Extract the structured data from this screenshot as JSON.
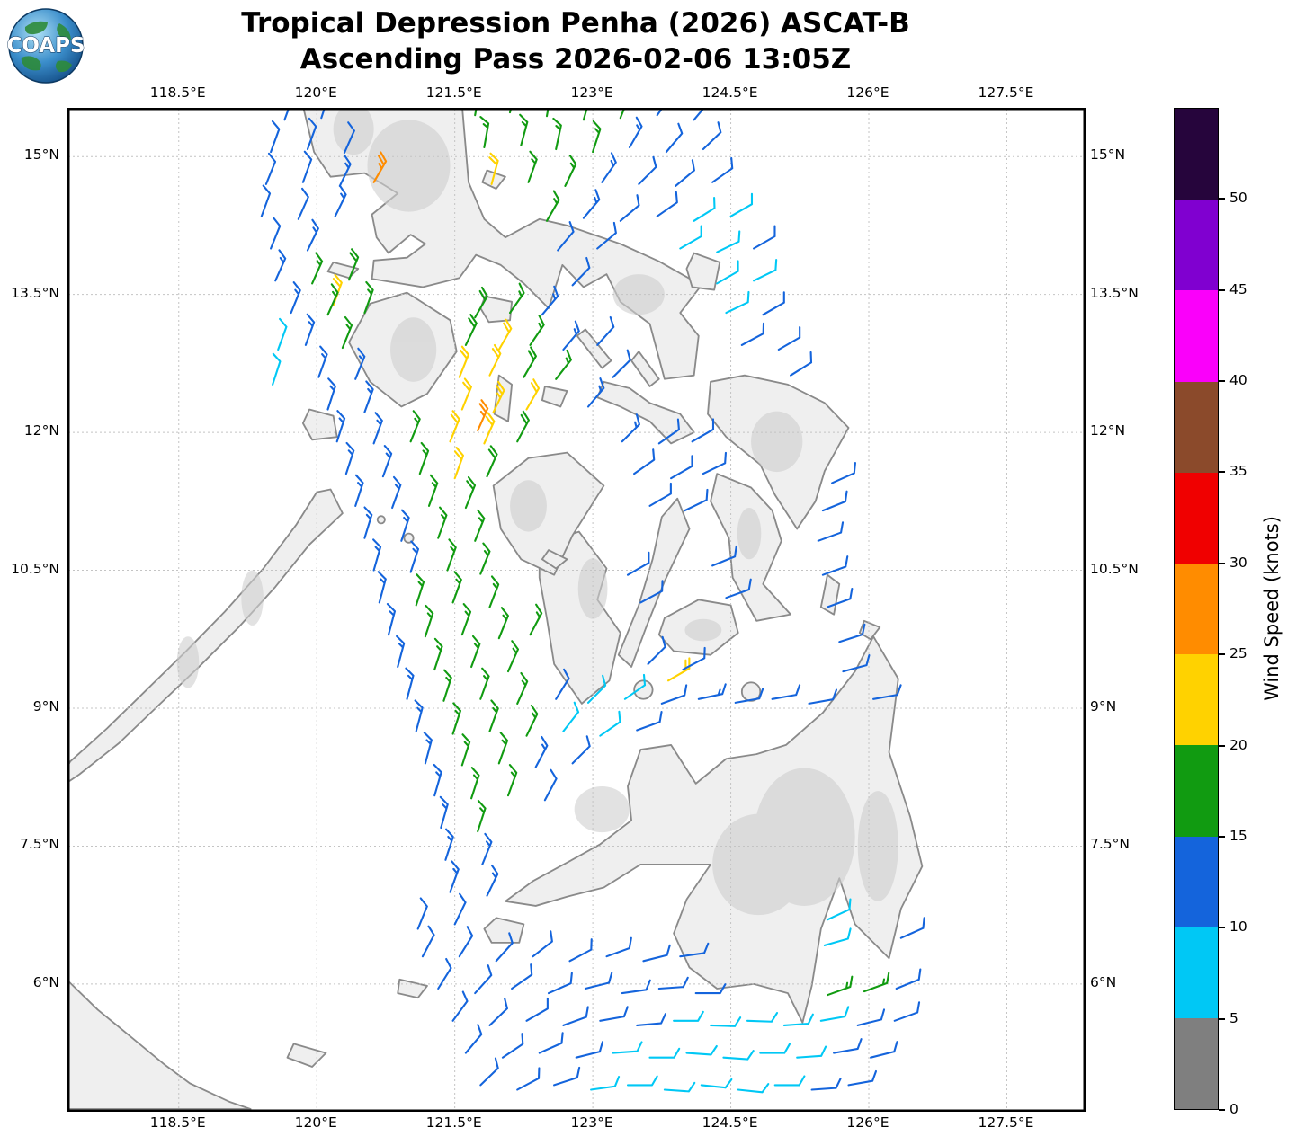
{
  "header": {
    "title_line1": "Tropical Depression Penha (2026) ASCAT-B",
    "title_line2": "Ascending Pass 2026-02-06 13:05Z",
    "logo_text": "COAPS"
  },
  "axes": {
    "lon_ticks": [
      {
        "label": "118.5°E",
        "lon": 118.5
      },
      {
        "label": "120°E",
        "lon": 120.0
      },
      {
        "label": "121.5°E",
        "lon": 121.5
      },
      {
        "label": "123°E",
        "lon": 123.0
      },
      {
        "label": "124.5°E",
        "lon": 124.5
      },
      {
        "label": "126°E",
        "lon": 126.0
      },
      {
        "label": "127.5°E",
        "lon": 127.5
      }
    ],
    "lat_ticks": [
      {
        "label": "15°N",
        "lat": 15.0
      },
      {
        "label": "13.5°N",
        "lat": 13.5
      },
      {
        "label": "12°N",
        "lat": 12.0
      },
      {
        "label": "10.5°N",
        "lat": 10.5
      },
      {
        "label": "9°N",
        "lat": 9.0
      },
      {
        "label": "7.5°N",
        "lat": 7.5
      },
      {
        "label": "6°N",
        "lat": 6.0
      }
    ]
  },
  "colorbar": {
    "title": "Wind Speed (knots)",
    "max": 55,
    "tick_values": [
      0,
      5,
      10,
      15,
      20,
      25,
      30,
      35,
      40,
      45,
      50
    ],
    "segments": [
      {
        "from": 0,
        "to": 5,
        "color": "#7f7f7f"
      },
      {
        "from": 5,
        "to": 10,
        "color": "#00c8f5"
      },
      {
        "from": 10,
        "to": 15,
        "color": "#1464dc"
      },
      {
        "from": 15,
        "to": 20,
        "color": "#119b11"
      },
      {
        "from": 20,
        "to": 25,
        "color": "#ffd200"
      },
      {
        "from": 25,
        "to": 30,
        "color": "#ff8c00"
      },
      {
        "from": 30,
        "to": 35,
        "color": "#f00000"
      },
      {
        "from": 35,
        "to": 40,
        "color": "#8b4a2b"
      },
      {
        "from": 40,
        "to": 45,
        "color": "#fa00fa"
      },
      {
        "from": 45,
        "to": 50,
        "color": "#8000d0"
      },
      {
        "from": 50,
        "to": 55,
        "color": "#26053c"
      }
    ]
  },
  "map": {
    "lon_min": 117.3,
    "lon_max": 128.35,
    "lat_min": 4.62,
    "lat_max": 15.52,
    "sea_color": "#ffffff",
    "land_color": "#efefef",
    "terrain_color": "#cfcfcf",
    "coast_color": "#8a8a8a",
    "grid_color": "#c4c4c4"
  },
  "chart_data": {
    "type": "wind_barb_map",
    "units": "knots",
    "barb_format": "[lon_deg_E, lat_deg_N, wind_from_direction_deg, speed_knots]",
    "barbs": [
      [
        119.65,
        15.4,
        20,
        12
      ],
      [
        120.05,
        15.42,
        18,
        12
      ],
      [
        121.72,
        15.45,
        10,
        16
      ],
      [
        122.1,
        15.48,
        14,
        17
      ],
      [
        122.5,
        15.44,
        10,
        16
      ],
      [
        122.9,
        15.4,
        16,
        16
      ],
      [
        123.3,
        15.42,
        22,
        15
      ],
      [
        123.7,
        15.45,
        35,
        13
      ],
      [
        124.1,
        15.4,
        40,
        12
      ],
      [
        119.5,
        15.05,
        20,
        10
      ],
      [
        119.9,
        15.08,
        20,
        12
      ],
      [
        120.3,
        15.04,
        24,
        12
      ],
      [
        121.82,
        15.1,
        10,
        16
      ],
      [
        122.22,
        15.12,
        15,
        17
      ],
      [
        122.6,
        15.08,
        12,
        16
      ],
      [
        123.0,
        15.05,
        18,
        15
      ],
      [
        123.4,
        15.1,
        30,
        13
      ],
      [
        123.8,
        15.05,
        40,
        12
      ],
      [
        124.2,
        15.08,
        46,
        12
      ],
      [
        119.45,
        14.7,
        22,
        10
      ],
      [
        119.85,
        14.72,
        20,
        12
      ],
      [
        120.25,
        14.68,
        26,
        13
      ],
      [
        120.62,
        14.72,
        30,
        26
      ],
      [
        121.9,
        14.7,
        15,
        21
      ],
      [
        122.3,
        14.72,
        20,
        17
      ],
      [
        122.7,
        14.68,
        26,
        16
      ],
      [
        123.1,
        14.72,
        35,
        14
      ],
      [
        123.5,
        14.7,
        45,
        12
      ],
      [
        123.9,
        14.68,
        50,
        12
      ],
      [
        124.3,
        14.72,
        55,
        10
      ],
      [
        119.4,
        14.35,
        20,
        12
      ],
      [
        119.8,
        14.32,
        24,
        12
      ],
      [
        120.2,
        14.35,
        26,
        13
      ],
      [
        122.5,
        14.3,
        30,
        15
      ],
      [
        122.9,
        14.33,
        40,
        13
      ],
      [
        123.3,
        14.3,
        50,
        12
      ],
      [
        123.7,
        14.35,
        55,
        10
      ],
      [
        124.1,
        14.3,
        58,
        8
      ],
      [
        124.5,
        14.35,
        60,
        8
      ],
      [
        119.5,
        14.0,
        22,
        12
      ],
      [
        119.9,
        13.98,
        26,
        13
      ],
      [
        122.62,
        13.98,
        40,
        12
      ],
      [
        123.05,
        14.0,
        50,
        11
      ],
      [
        123.95,
        14.0,
        60,
        8
      ],
      [
        124.35,
        13.96,
        64,
        8
      ],
      [
        124.75,
        14.0,
        60,
        10
      ],
      [
        119.55,
        13.65,
        24,
        13
      ],
      [
        119.95,
        13.62,
        24,
        16
      ],
      [
        120.35,
        13.66,
        22,
        18
      ],
      [
        120.18,
        13.38,
        20,
        21
      ],
      [
        122.78,
        13.6,
        44,
        12
      ],
      [
        124.35,
        13.62,
        60,
        8
      ],
      [
        124.75,
        13.65,
        64,
        9
      ],
      [
        119.72,
        13.3,
        22,
        13
      ],
      [
        120.12,
        13.28,
        24,
        17
      ],
      [
        120.52,
        13.3,
        20,
        16
      ],
      [
        121.72,
        13.25,
        30,
        18
      ],
      [
        122.1,
        13.3,
        35,
        16
      ],
      [
        122.45,
        13.28,
        40,
        13
      ],
      [
        124.45,
        13.3,
        64,
        9
      ],
      [
        124.85,
        13.28,
        60,
        10
      ],
      [
        119.58,
        12.9,
        20,
        8
      ],
      [
        119.88,
        12.95,
        20,
        14
      ],
      [
        120.28,
        12.92,
        22,
        15
      ],
      [
        121.62,
        12.95,
        26,
        19
      ],
      [
        121.98,
        12.9,
        30,
        20
      ],
      [
        122.32,
        12.95,
        34,
        17
      ],
      [
        122.68,
        12.9,
        40,
        14
      ],
      [
        123.05,
        12.95,
        42,
        12
      ],
      [
        124.62,
        12.95,
        62,
        10
      ],
      [
        125.02,
        12.9,
        60,
        11
      ],
      [
        119.52,
        12.52,
        18,
        8
      ],
      [
        120.02,
        12.6,
        20,
        13
      ],
      [
        120.42,
        12.58,
        22,
        14
      ],
      [
        121.55,
        12.6,
        22,
        20
      ],
      [
        121.88,
        12.62,
        26,
        21
      ],
      [
        122.25,
        12.6,
        30,
        18
      ],
      [
        122.6,
        12.58,
        38,
        15
      ],
      [
        123.22,
        12.6,
        45,
        12
      ],
      [
        125.15,
        12.62,
        58,
        10
      ],
      [
        120.12,
        12.25,
        18,
        13
      ],
      [
        120.52,
        12.22,
        20,
        14
      ],
      [
        121.58,
        12.25,
        22,
        22
      ],
      [
        121.75,
        12.02,
        24,
        27
      ],
      [
        121.92,
        12.22,
        26,
        23
      ],
      [
        122.28,
        12.25,
        30,
        20
      ],
      [
        122.95,
        12.28,
        40,
        14
      ],
      [
        120.22,
        11.9,
        18,
        13
      ],
      [
        120.62,
        11.88,
        20,
        14
      ],
      [
        121.02,
        11.9,
        22,
        15
      ],
      [
        121.45,
        11.9,
        22,
        21
      ],
      [
        121.82,
        11.88,
        24,
        22
      ],
      [
        122.18,
        11.9,
        28,
        19
      ],
      [
        123.32,
        11.9,
        45,
        13
      ],
      [
        123.72,
        11.88,
        55,
        12
      ],
      [
        124.08,
        11.9,
        60,
        11
      ],
      [
        120.32,
        11.55,
        18,
        13
      ],
      [
        120.72,
        11.52,
        20,
        14
      ],
      [
        121.12,
        11.55,
        20,
        15
      ],
      [
        121.5,
        11.5,
        20,
        20
      ],
      [
        121.85,
        11.52,
        24,
        19
      ],
      [
        123.45,
        11.55,
        55,
        12
      ],
      [
        123.85,
        11.5,
        60,
        11
      ],
      [
        124.2,
        11.55,
        64,
        10
      ],
      [
        125.6,
        11.45,
        66,
        10
      ],
      [
        120.42,
        11.2,
        18,
        13
      ],
      [
        120.82,
        11.18,
        20,
        14
      ],
      [
        121.22,
        11.2,
        20,
        16
      ],
      [
        121.62,
        11.18,
        22,
        18
      ],
      [
        123.62,
        11.2,
        60,
        11
      ],
      [
        124.0,
        11.15,
        64,
        10
      ],
      [
        125.5,
        11.15,
        68,
        10
      ],
      [
        120.52,
        10.85,
        17,
        13
      ],
      [
        120.92,
        10.82,
        18,
        14
      ],
      [
        121.32,
        10.85,
        20,
        16
      ],
      [
        121.72,
        10.82,
        22,
        17
      ],
      [
        125.45,
        10.82,
        70,
        10
      ],
      [
        120.62,
        10.5,
        16,
        13
      ],
      [
        121.02,
        10.48,
        18,
        14
      ],
      [
        121.42,
        10.5,
        20,
        17
      ],
      [
        121.78,
        10.46,
        22,
        16
      ],
      [
        123.38,
        10.45,
        60,
        11
      ],
      [
        124.3,
        10.55,
        68,
        11
      ],
      [
        125.5,
        10.45,
        70,
        10
      ],
      [
        120.68,
        10.15,
        15,
        13
      ],
      [
        121.08,
        10.12,
        18,
        15
      ],
      [
        121.48,
        10.15,
        20,
        17
      ],
      [
        121.88,
        10.1,
        21,
        16
      ],
      [
        123.52,
        10.15,
        62,
        11
      ],
      [
        124.45,
        10.2,
        70,
        11
      ],
      [
        125.55,
        10.1,
        70,
        10
      ],
      [
        120.78,
        9.8,
        15,
        13
      ],
      [
        121.18,
        9.78,
        18,
        15
      ],
      [
        121.58,
        9.8,
        20,
        17
      ],
      [
        121.98,
        9.76,
        22,
        16
      ],
      [
        122.32,
        9.8,
        28,
        15
      ],
      [
        125.68,
        9.72,
        72,
        10
      ],
      [
        120.88,
        9.45,
        15,
        13
      ],
      [
        121.28,
        9.42,
        18,
        15
      ],
      [
        121.68,
        9.45,
        20,
        17
      ],
      [
        122.08,
        9.4,
        24,
        16
      ],
      [
        123.6,
        9.48,
        45,
        12
      ],
      [
        123.82,
        9.3,
        60,
        21
      ],
      [
        123.98,
        9.42,
        62,
        11
      ],
      [
        125.72,
        9.4,
        75,
        10
      ],
      [
        120.98,
        9.1,
        15,
        14
      ],
      [
        121.38,
        9.08,
        18,
        16
      ],
      [
        121.78,
        9.1,
        20,
        17
      ],
      [
        122.18,
        9.05,
        24,
        16
      ],
      [
        122.6,
        9.1,
        32,
        12
      ],
      [
        122.95,
        9.06,
        45,
        8
      ],
      [
        123.35,
        9.1,
        55,
        8
      ],
      [
        123.75,
        9.05,
        70,
        12
      ],
      [
        124.15,
        9.1,
        78,
        13
      ],
      [
        124.55,
        9.06,
        80,
        12
      ],
      [
        124.95,
        9.1,
        80,
        12
      ],
      [
        125.35,
        9.05,
        80,
        11
      ],
      [
        126.05,
        9.1,
        80,
        11
      ],
      [
        121.08,
        8.75,
        15,
        14
      ],
      [
        121.48,
        8.72,
        18,
        16
      ],
      [
        121.88,
        8.75,
        20,
        17
      ],
      [
        122.28,
        8.7,
        26,
        15
      ],
      [
        122.68,
        8.75,
        38,
        9
      ],
      [
        123.08,
        8.7,
        55,
        9
      ],
      [
        123.48,
        8.76,
        70,
        12
      ],
      [
        121.18,
        8.4,
        15,
        14
      ],
      [
        121.58,
        8.38,
        18,
        16
      ],
      [
        121.98,
        8.4,
        20,
        16
      ],
      [
        122.38,
        8.36,
        28,
        13
      ],
      [
        122.78,
        8.4,
        45,
        10
      ],
      [
        121.28,
        8.05,
        16,
        14
      ],
      [
        121.68,
        8.02,
        18,
        17
      ],
      [
        122.08,
        8.05,
        20,
        16
      ],
      [
        122.48,
        8.0,
        28,
        12
      ],
      [
        121.35,
        7.7,
        16,
        14
      ],
      [
        121.75,
        7.66,
        18,
        16
      ],
      [
        121.4,
        7.35,
        18,
        14
      ],
      [
        121.8,
        7.3,
        22,
        14
      ],
      [
        121.45,
        7.0,
        20,
        13
      ],
      [
        121.85,
        6.96,
        26,
        13
      ],
      [
        121.1,
        6.6,
        22,
        12
      ],
      [
        121.5,
        6.65,
        26,
        12
      ],
      [
        121.15,
        6.3,
        28,
        12
      ],
      [
        121.55,
        6.3,
        32,
        12
      ],
      [
        121.95,
        6.25,
        42,
        12
      ],
      [
        122.35,
        6.3,
        52,
        11
      ],
      [
        122.75,
        6.25,
        62,
        11
      ],
      [
        123.15,
        6.3,
        70,
        11
      ],
      [
        123.55,
        6.25,
        76,
        11
      ],
      [
        123.95,
        6.3,
        82,
        10
      ],
      [
        125.52,
        6.42,
        74,
        8
      ],
      [
        125.55,
        6.7,
        65,
        9
      ],
      [
        126.35,
        6.5,
        66,
        10
      ],
      [
        121.32,
        5.95,
        32,
        12
      ],
      [
        121.72,
        5.9,
        42,
        12
      ],
      [
        122.12,
        5.95,
        55,
        11
      ],
      [
        122.52,
        5.9,
        66,
        11
      ],
      [
        122.92,
        5.95,
        76,
        10
      ],
      [
        123.32,
        5.9,
        82,
        10
      ],
      [
        123.72,
        5.95,
        86,
        10
      ],
      [
        124.12,
        5.9,
        90,
        10
      ],
      [
        125.55,
        5.88,
        70,
        15
      ],
      [
        125.95,
        5.92,
        70,
        16
      ],
      [
        126.3,
        5.95,
        68,
        12
      ],
      [
        121.48,
        5.6,
        36,
        11
      ],
      [
        121.88,
        5.55,
        46,
        11
      ],
      [
        122.28,
        5.6,
        60,
        11
      ],
      [
        122.68,
        5.55,
        70,
        10
      ],
      [
        123.08,
        5.6,
        80,
        10
      ],
      [
        123.48,
        5.55,
        85,
        10
      ],
      [
        123.88,
        5.6,
        90,
        9
      ],
      [
        124.28,
        5.55,
        92,
        9
      ],
      [
        124.68,
        5.6,
        92,
        8
      ],
      [
        125.08,
        5.55,
        86,
        8
      ],
      [
        125.48,
        5.6,
        80,
        9
      ],
      [
        125.88,
        5.55,
        76,
        12
      ],
      [
        126.28,
        5.6,
        70,
        12
      ],
      [
        121.62,
        5.25,
        40,
        11
      ],
      [
        122.02,
        5.2,
        56,
        11
      ],
      [
        122.42,
        5.25,
        66,
        10
      ],
      [
        122.82,
        5.2,
        76,
        10
      ],
      [
        123.22,
        5.25,
        86,
        9
      ],
      [
        123.62,
        5.2,
        90,
        9
      ],
      [
        124.02,
        5.25,
        94,
        9
      ],
      [
        124.42,
        5.2,
        94,
        8
      ],
      [
        124.82,
        5.25,
        90,
        8
      ],
      [
        125.22,
        5.2,
        86,
        9
      ],
      [
        125.62,
        5.25,
        80,
        10
      ],
      [
        126.02,
        5.2,
        76,
        11
      ],
      [
        121.78,
        4.9,
        46,
        11
      ],
      [
        122.18,
        4.85,
        62,
        10
      ],
      [
        122.58,
        4.9,
        72,
        10
      ],
      [
        122.98,
        4.85,
        82,
        9
      ],
      [
        123.38,
        4.9,
        90,
        9
      ],
      [
        123.78,
        4.85,
        94,
        8
      ],
      [
        124.18,
        4.9,
        96,
        8
      ],
      [
        124.58,
        4.85,
        96,
        8
      ],
      [
        124.98,
        4.9,
        90,
        9
      ],
      [
        125.38,
        4.85,
        86,
        10
      ],
      [
        125.78,
        4.9,
        80,
        10
      ]
    ]
  }
}
